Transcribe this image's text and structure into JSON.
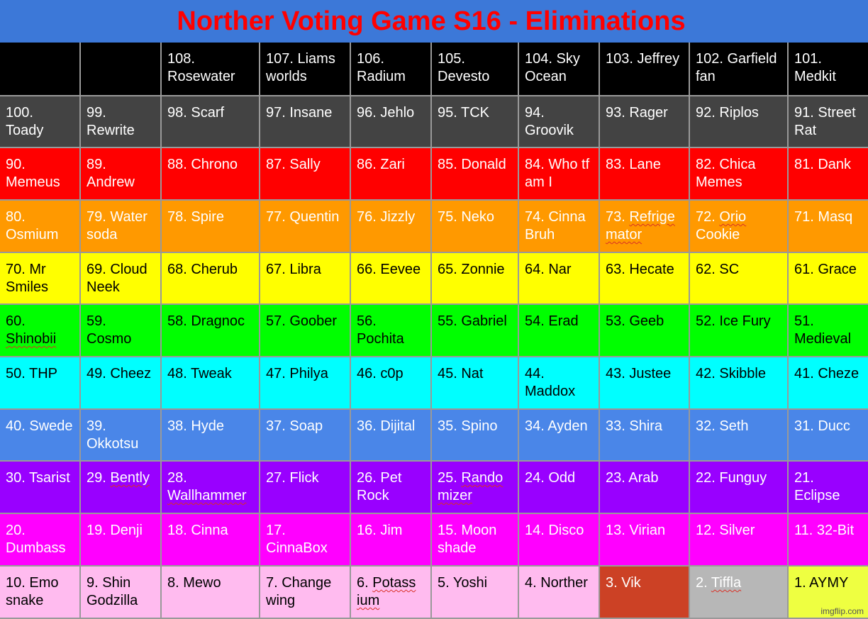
{
  "title": "Norther Voting Game S16 - Eliminations",
  "watermark": "imgflip.com",
  "colors": {
    "title_bar": "#3c78d8",
    "title_text": "#ff0000",
    "grid_line": "#999999"
  },
  "rows": [
    {
      "bg": "#000000",
      "fg": "#ffffff",
      "cells": [
        "",
        "",
        "108. Rosewater",
        "107. Liams worlds",
        "106. Radium",
        "105. Devesto",
        "104. Sky Ocean",
        "103. Jeffrey",
        "102. Garfield fan",
        "101. Medkit"
      ]
    },
    {
      "bg": "#434343",
      "fg": "#ffffff",
      "cells": [
        "100. Toady",
        "99. Rewrite",
        "98. Scarf",
        "97. Insane",
        "96. Jehlo",
        "95. TCK",
        "94. Groovik",
        "93. Rager",
        "92. Riplos",
        "91. Street Rat"
      ]
    },
    {
      "bg": "#ff0000",
      "fg": "#ffffff",
      "cells": [
        "90. Memeus",
        "89. Andrew",
        "88. Chrono",
        "87. Sally",
        "86. Zari",
        "85. Donald",
        "84. Who tf am I",
        "83. Lane",
        "82. Chica Memes",
        "81. Dank"
      ]
    },
    {
      "bg": "#ff9900",
      "fg": "#ffffff",
      "cells": [
        "80. Osmium",
        "79. Water soda",
        "78. Spire",
        "77. Quentin",
        "76. Jizzly",
        "75. Neko",
        "74. Cinna Bruh",
        "73. Refrigemator",
        "72. Orio Cookie",
        "71. Masq"
      ]
    },
    {
      "bg": "#ffff00",
      "fg": "#000000",
      "cells": [
        "70. Mr Smiles",
        "69. Cloud Neek",
        "68. Cherub",
        "67. Libra",
        "66. Eevee",
        "65. Zonnie",
        "64. Nar",
        "63. Hecate",
        "62. SC",
        "61. Grace"
      ]
    },
    {
      "bg": "#00ff00",
      "fg": "#000000",
      "cells": [
        "60. Shinobii",
        "59. Cosmo",
        "58. Dragnoc",
        "57. Goober",
        "56. Pochita",
        "55. Gabriel",
        "54. Erad",
        "53. Geeb",
        "52. Ice Fury",
        "51. Medieval"
      ]
    },
    {
      "bg": "#00ffff",
      "fg": "#000000",
      "cells": [
        "50. THP",
        "49. Cheez",
        "48. Tweak",
        "47. Philya",
        "46. c0p",
        "45. Nat",
        "44. Maddox",
        "43. Justee",
        "42. Skibble",
        "41. Cheze"
      ]
    },
    {
      "bg": "#4a86e8",
      "fg": "#ffffff",
      "cells": [
        "40. Swede",
        "39. Okkotsu",
        "38. Hyde",
        "37. Soap",
        "36. Dijital",
        "35. Spino",
        "34. Ayden",
        "33. Shira",
        "32. Seth",
        "31. Ducc"
      ]
    },
    {
      "bg": "#9900ff",
      "fg": "#ffffff",
      "cells": [
        "30. Tsarist",
        "29. Bently",
        "28. Wallhammer",
        "27. Flick",
        "26. Pet Rock",
        "25. Randomizer",
        "24. Odd",
        "23. Arab",
        "22. Funguy",
        "21. Eclipse"
      ]
    },
    {
      "bg": "#ff00ff",
      "fg": "#ffffff",
      "cells": [
        "20. Dumbass",
        "19. Denji",
        "18. Cinna",
        "17. CinnaBox",
        "16. Jim",
        "15. Moon shade",
        "14. Disco",
        "13. Virian",
        "12. Silver",
        "11. 32-Bit"
      ]
    },
    {
      "bg": "#ffbbef",
      "fg": "#000000",
      "cells": [
        "10. Emo snake",
        "9. Shin Godzilla",
        "8. Mewo",
        "7. Change wing",
        "6. Potassium",
        "5. Yoshi",
        "4. Norther",
        "3. Vik",
        "2. Tiffla",
        "1. AYMY"
      ],
      "cell_overrides": {
        "7": {
          "bg": "#cc4125",
          "fg": "#ffffff"
        },
        "8": {
          "bg": "#b7b7b7",
          "fg": "#ffffff"
        },
        "9": {
          "bg": "#eeff41",
          "fg": "#000000"
        }
      }
    }
  ]
}
